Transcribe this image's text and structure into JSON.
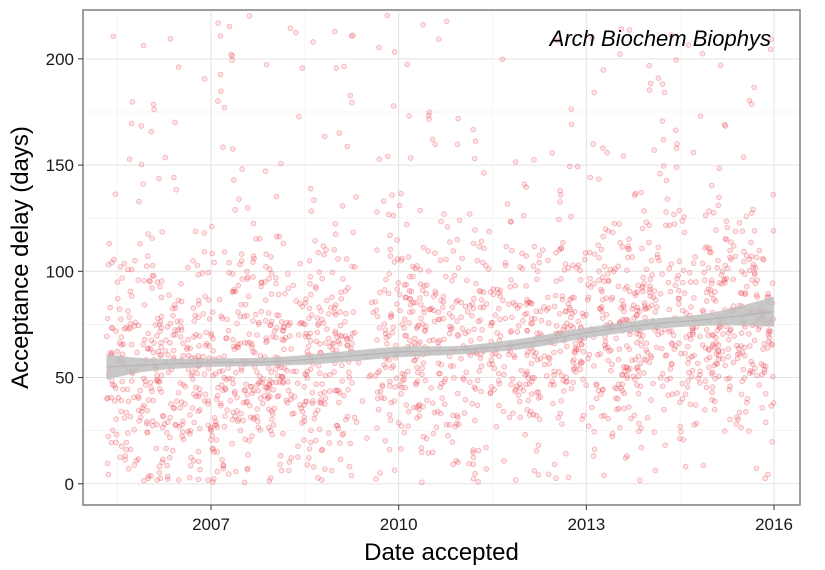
{
  "chart_data": {
    "type": "scatter",
    "title": "",
    "annotation": "Arch Biochem Biophys",
    "xlabel": "Date accepted",
    "ylabel": "Acceptance delay (days)",
    "x_ticks": [
      "2007",
      "2010",
      "2013",
      "2016"
    ],
    "y_ticks": [
      "0",
      "50",
      "100",
      "150",
      "200"
    ],
    "xlim": [
      "2004-12-15",
      "2016-06-01"
    ],
    "ylim": [
      -10,
      223
    ],
    "grid": true,
    "point_color": "#e8323c",
    "point_count_approx": 2200,
    "point_generation": {
      "x_range": [
        "2005-05-01",
        "2015-12-31"
      ],
      "gap_range": [
        "2009-05-01",
        "2009-08-15"
      ],
      "y_range": [
        0,
        223
      ],
      "seed": 17
    },
    "trend_line": {
      "type": "loess",
      "color": "#bfbfbf",
      "points": [
        {
          "x": "2005-05-01",
          "y": 55,
          "lower": 49,
          "upper": 61
        },
        {
          "x": "2006-01-01",
          "y": 56,
          "lower": 53,
          "upper": 59
        },
        {
          "x": "2007-01-01",
          "y": 57,
          "lower": 55,
          "upper": 59
        },
        {
          "x": "2008-01-01",
          "y": 57.5,
          "lower": 55.5,
          "upper": 59.5
        },
        {
          "x": "2009-01-01",
          "y": 59.5,
          "lower": 57,
          "upper": 62
        },
        {
          "x": "2010-01-01",
          "y": 62,
          "lower": 59.5,
          "upper": 64.5
        },
        {
          "x": "2011-01-01",
          "y": 63,
          "lower": 61,
          "upper": 65
        },
        {
          "x": "2012-01-01",
          "y": 66,
          "lower": 63.5,
          "upper": 68.5
        },
        {
          "x": "2013-01-01",
          "y": 71,
          "lower": 68.5,
          "upper": 73.5
        },
        {
          "x": "2014-01-01",
          "y": 75,
          "lower": 72.5,
          "upper": 77.5
        },
        {
          "x": "2015-01-01",
          "y": 77.5,
          "lower": 74.5,
          "upper": 80.5
        },
        {
          "x": "2015-12-31",
          "y": 81,
          "lower": 74,
          "upper": 88
        }
      ]
    }
  }
}
